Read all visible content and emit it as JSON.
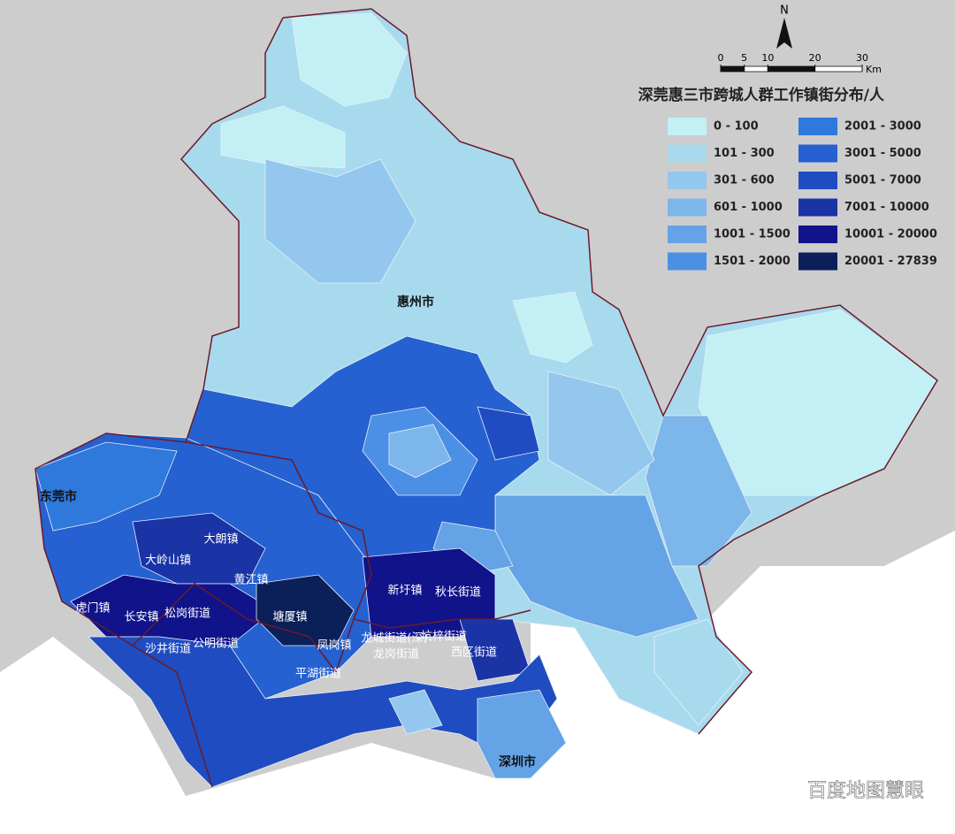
{
  "title": "深莞惠三市跨城人群工作镇街分布/人",
  "legend": [
    {
      "label": "0 - 100",
      "color": "#c2f0f4"
    },
    {
      "label": "101 - 300",
      "color": "#a8daee"
    },
    {
      "label": "301 - 600",
      "color": "#93c7ee"
    },
    {
      "label": "601 - 1000",
      "color": "#7db6ea"
    },
    {
      "label": "1001 - 1500",
      "color": "#64a3e6"
    },
    {
      "label": "1501 - 2000",
      "color": "#4b90e4"
    },
    {
      "label": "2001 - 3000",
      "color": "#2f78dc"
    },
    {
      "label": "3001 - 5000",
      "color": "#2561d0"
    },
    {
      "label": "5001 - 7000",
      "color": "#1f4cc0"
    },
    {
      "label": "7001 - 10000",
      "color": "#1a34a6"
    },
    {
      "label": "10001 - 20000",
      "color": "#10138a"
    },
    {
      "label": "20001 - 27839",
      "color": "#0b1f58"
    }
  ],
  "north": "N",
  "scale": {
    "ticks": [
      0,
      5,
      10,
      20,
      30
    ],
    "unit": "Km"
  },
  "places": [
    "惠州市",
    "东莞市",
    "深圳市",
    "大朗镇",
    "大岭山镇",
    "黄江镇",
    "虎门镇",
    "长安镇",
    "松岗街道",
    "塘厦镇",
    "新圩镇",
    "秋长街道",
    "沙井街道",
    "公明街道",
    "凤岗镇",
    "龙城街道(深)",
    "坑梓街道",
    "龙岗街道",
    "西区街道",
    "平湖街道"
  ],
  "watermark": "百度地图慧眼"
}
